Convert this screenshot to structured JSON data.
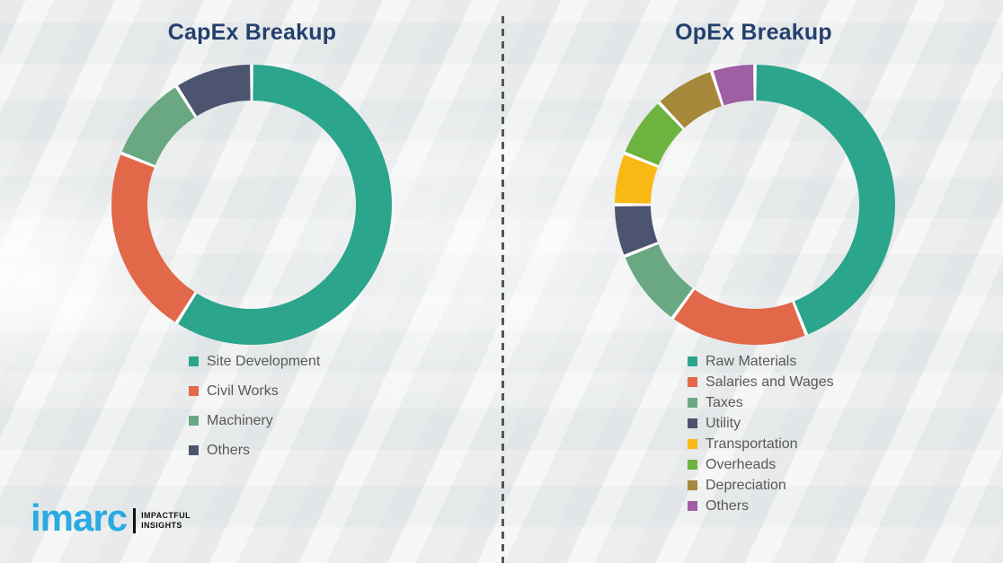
{
  "theme": {
    "title_color": "#24406E",
    "legend_text_color": "#595959",
    "divider_color": "#555555",
    "background_color": "#EDEFF0",
    "segment_gap_color": "#FFFFFF"
  },
  "divider": {
    "style": "vertical-dashed"
  },
  "chart_data": [
    {
      "type": "pie",
      "subtype": "donut",
      "title": "CapEx Breakup",
      "categories": [
        "Site Development",
        "Civil Works",
        "Machinery",
        "Others"
      ],
      "values": [
        59,
        22,
        10,
        9
      ],
      "values_unit": "% (estimated from arc angles)",
      "colors": [
        "#2CA58D",
        "#E2684A",
        "#6AA881",
        "#4D5470"
      ],
      "start_angle_deg": 0,
      "direction": "clockwise",
      "legend_position": "bottom-left",
      "data_labels": false
    },
    {
      "type": "pie",
      "subtype": "donut",
      "title": "OpEx Breakup",
      "categories": [
        "Raw Materials",
        "Salaries and Wages",
        "Taxes",
        "Utility",
        "Transportation",
        "Overheads",
        "Depreciation",
        "Others"
      ],
      "values": [
        44,
        16,
        9,
        6,
        6,
        7,
        7,
        5
      ],
      "values_unit": "% (estimated from arc angles)",
      "colors": [
        "#2CA58D",
        "#E2684A",
        "#6AA881",
        "#4D5470",
        "#F9B915",
        "#6CB33F",
        "#A6883B",
        "#9E5FA3"
      ],
      "start_angle_deg": 0,
      "direction": "clockwise",
      "legend_position": "bottom-left",
      "data_labels": false
    }
  ],
  "logo": {
    "brand": "imarc",
    "brand_color": "#29ABE2",
    "tagline_line1": "IMPACTFUL",
    "tagline_line2": "INSIGHTS",
    "tagline_color": "#111111"
  }
}
